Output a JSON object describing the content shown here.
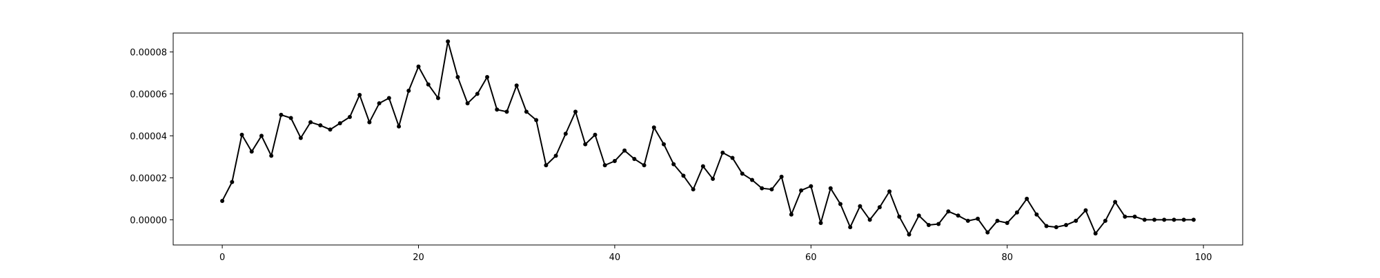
{
  "chart_data": {
    "type": "line",
    "title": "",
    "xlabel": "",
    "ylabel": "",
    "xlim": [
      -5,
      104
    ],
    "ylim": [
      -1.2e-05,
      8.9e-05
    ],
    "xticks": [
      0,
      20,
      40,
      60,
      80,
      100
    ],
    "xtick_labels": [
      "0",
      "20",
      "40",
      "60",
      "80",
      "100"
    ],
    "yticks": [
      0.0,
      2e-05,
      4e-05,
      6e-05,
      8e-05
    ],
    "ytick_labels": [
      "0.00000",
      "0.00002",
      "0.00004",
      "0.00006",
      "0.00008"
    ],
    "grid": false,
    "legend": "none",
    "series": [
      {
        "color": "#000000",
        "marker": "circle",
        "x": [
          0,
          1,
          2,
          3,
          4,
          5,
          6,
          7,
          8,
          9,
          10,
          11,
          12,
          13,
          14,
          15,
          16,
          17,
          18,
          19,
          20,
          21,
          22,
          23,
          24,
          25,
          26,
          27,
          28,
          29,
          30,
          31,
          32,
          33,
          34,
          35,
          36,
          37,
          38,
          39,
          40,
          41,
          42,
          43,
          44,
          45,
          46,
          47,
          48,
          49,
          50,
          51,
          52,
          53,
          54,
          55,
          56,
          57,
          58,
          59,
          60,
          61,
          62,
          63,
          64,
          65,
          66,
          67,
          68,
          69,
          70,
          71,
          72,
          73,
          74,
          75,
          76,
          77,
          78,
          79,
          80,
          81,
          82,
          83,
          84,
          85,
          86,
          87,
          88,
          89,
          90,
          91,
          92,
          93,
          94,
          95,
          96,
          97,
          98,
          99
        ],
        "y": [
          9e-06,
          1.8e-05,
          4.05e-05,
          3.25e-05,
          4e-05,
          3.05e-05,
          5e-05,
          4.85e-05,
          3.9e-05,
          4.65e-05,
          4.5e-05,
          4.3e-05,
          4.6e-05,
          4.9e-05,
          5.95e-05,
          4.65e-05,
          5.55e-05,
          5.8e-05,
          4.45e-05,
          6.15e-05,
          7.3e-05,
          6.45e-05,
          5.8e-05,
          8.5e-05,
          6.8e-05,
          5.55e-05,
          6e-05,
          6.8e-05,
          5.25e-05,
          5.15e-05,
          6.4e-05,
          5.15e-05,
          4.75e-05,
          2.6e-05,
          3.05e-05,
          4.1e-05,
          5.15e-05,
          3.6e-05,
          4.05e-05,
          2.6e-05,
          2.8e-05,
          3.3e-05,
          2.9e-05,
          2.6e-05,
          4.4e-05,
          3.6e-05,
          2.65e-05,
          2.1e-05,
          1.45e-05,
          2.55e-05,
          1.95e-05,
          3.2e-05,
          2.95e-05,
          2.2e-05,
          1.9e-05,
          1.5e-05,
          1.45e-05,
          2.05e-05,
          2.5e-06,
          1.4e-05,
          1.6e-05,
          -1.5e-06,
          1.5e-05,
          7.5e-06,
          -3.5e-06,
          6.5e-06,
          0.0,
          6e-06,
          1.35e-05,
          1.5e-06,
          -7e-06,
          2e-06,
          -2.5e-06,
          -2e-06,
          4e-06,
          2e-06,
          -5e-07,
          5e-07,
          -6e-06,
          -5e-07,
          -1.5e-06,
          3.5e-06,
          1e-05,
          2.5e-06,
          -3e-06,
          -3.5e-06,
          -2.5e-06,
          -5e-07,
          4.5e-06,
          -6.5e-06,
          -5e-07,
          8.5e-06,
          1.5e-06,
          1.5e-06,
          0.0,
          0.0,
          0.0,
          0.0,
          0.0,
          0.0
        ]
      }
    ]
  }
}
